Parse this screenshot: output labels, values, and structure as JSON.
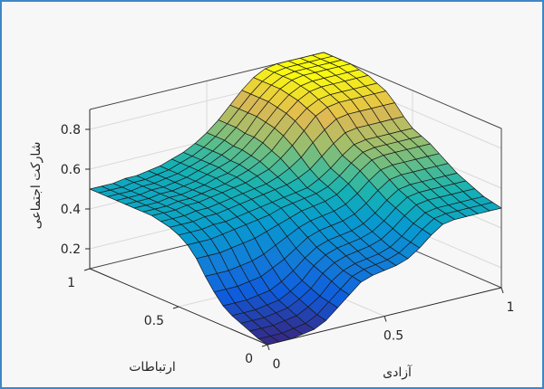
{
  "chart_data": {
    "type": "surface",
    "title": "",
    "xlabel": "آزادی",
    "ylabel": "ارتباطات",
    "zlabel": "شارکت اجتماعی",
    "xlim": [
      0,
      1
    ],
    "ylim": [
      0,
      1
    ],
    "zlim": [
      0.1,
      0.9
    ],
    "xticks": [
      "0",
      "0.5",
      "1"
    ],
    "yticks": [
      "0",
      "0.5",
      "1"
    ],
    "zticks": [
      "0.2",
      "0.4",
      "0.6",
      "0.8"
    ],
    "grid": true,
    "colormap": "parula",
    "x": [
      0,
      0.05,
      0.1,
      0.15,
      0.2,
      0.25,
      0.3,
      0.35,
      0.4,
      0.45,
      0.5,
      0.55,
      0.6,
      0.65,
      0.7,
      0.75,
      0.8,
      0.85,
      0.9,
      0.95,
      1.0
    ],
    "y": [
      0,
      0.05,
      0.1,
      0.15,
      0.2,
      0.25,
      0.3,
      0.35,
      0.4,
      0.45,
      0.5,
      0.55,
      0.6,
      0.65,
      0.7,
      0.75,
      0.8,
      0.85,
      0.9,
      0.95,
      1.0
    ],
    "z": [
      [
        0.1,
        0.1,
        0.1,
        0.11,
        0.12,
        0.15,
        0.2,
        0.25,
        0.3,
        0.32,
        0.33,
        0.34,
        0.36,
        0.4,
        0.45,
        0.49,
        0.5,
        0.5,
        0.5,
        0.5,
        0.5
      ],
      [
        0.11,
        0.11,
        0.11,
        0.12,
        0.13,
        0.16,
        0.21,
        0.26,
        0.31,
        0.33,
        0.34,
        0.35,
        0.37,
        0.41,
        0.46,
        0.5,
        0.51,
        0.51,
        0.51,
        0.51,
        0.51
      ],
      [
        0.13,
        0.13,
        0.13,
        0.14,
        0.15,
        0.18,
        0.22,
        0.28,
        0.32,
        0.34,
        0.35,
        0.36,
        0.38,
        0.42,
        0.47,
        0.51,
        0.52,
        0.52,
        0.52,
        0.52,
        0.52
      ],
      [
        0.15,
        0.15,
        0.15,
        0.16,
        0.17,
        0.2,
        0.24,
        0.3,
        0.34,
        0.36,
        0.37,
        0.38,
        0.4,
        0.44,
        0.49,
        0.53,
        0.54,
        0.54,
        0.54,
        0.54,
        0.54
      ],
      [
        0.17,
        0.17,
        0.17,
        0.18,
        0.19,
        0.22,
        0.26,
        0.32,
        0.36,
        0.38,
        0.39,
        0.4,
        0.42,
        0.46,
        0.51,
        0.55,
        0.56,
        0.56,
        0.56,
        0.56,
        0.56
      ],
      [
        0.2,
        0.2,
        0.2,
        0.21,
        0.22,
        0.25,
        0.29,
        0.34,
        0.38,
        0.4,
        0.41,
        0.42,
        0.44,
        0.48,
        0.53,
        0.57,
        0.58,
        0.58,
        0.58,
        0.58,
        0.58
      ],
      [
        0.25,
        0.25,
        0.25,
        0.26,
        0.27,
        0.3,
        0.33,
        0.37,
        0.41,
        0.43,
        0.44,
        0.45,
        0.47,
        0.51,
        0.56,
        0.6,
        0.61,
        0.61,
        0.61,
        0.61,
        0.61
      ],
      [
        0.31,
        0.31,
        0.31,
        0.32,
        0.33,
        0.35,
        0.38,
        0.41,
        0.44,
        0.46,
        0.47,
        0.48,
        0.5,
        0.54,
        0.59,
        0.63,
        0.64,
        0.64,
        0.64,
        0.64,
        0.64
      ],
      [
        0.38,
        0.38,
        0.38,
        0.39,
        0.4,
        0.41,
        0.43,
        0.45,
        0.47,
        0.49,
        0.5,
        0.51,
        0.53,
        0.57,
        0.62,
        0.66,
        0.67,
        0.67,
        0.67,
        0.67,
        0.67
      ],
      [
        0.43,
        0.43,
        0.43,
        0.44,
        0.45,
        0.46,
        0.47,
        0.48,
        0.5,
        0.51,
        0.52,
        0.53,
        0.55,
        0.59,
        0.64,
        0.68,
        0.69,
        0.69,
        0.69,
        0.69,
        0.69
      ],
      [
        0.46,
        0.46,
        0.46,
        0.47,
        0.47,
        0.48,
        0.49,
        0.5,
        0.51,
        0.52,
        0.53,
        0.54,
        0.57,
        0.61,
        0.66,
        0.7,
        0.71,
        0.71,
        0.71,
        0.71,
        0.71
      ],
      [
        0.48,
        0.48,
        0.48,
        0.49,
        0.49,
        0.5,
        0.51,
        0.52,
        0.53,
        0.54,
        0.55,
        0.57,
        0.6,
        0.65,
        0.7,
        0.74,
        0.75,
        0.75,
        0.75,
        0.75,
        0.75
      ],
      [
        0.49,
        0.49,
        0.49,
        0.5,
        0.5,
        0.51,
        0.52,
        0.53,
        0.54,
        0.55,
        0.57,
        0.6,
        0.64,
        0.7,
        0.75,
        0.79,
        0.8,
        0.8,
        0.8,
        0.8,
        0.8
      ],
      [
        0.5,
        0.5,
        0.5,
        0.51,
        0.51,
        0.52,
        0.53,
        0.54,
        0.55,
        0.57,
        0.59,
        0.63,
        0.68,
        0.74,
        0.8,
        0.83,
        0.84,
        0.84,
        0.84,
        0.84,
        0.84
      ],
      [
        0.5,
        0.5,
        0.5,
        0.51,
        0.51,
        0.52,
        0.53,
        0.54,
        0.56,
        0.58,
        0.61,
        0.65,
        0.71,
        0.77,
        0.82,
        0.85,
        0.86,
        0.86,
        0.86,
        0.86,
        0.86
      ],
      [
        0.5,
        0.5,
        0.5,
        0.51,
        0.51,
        0.52,
        0.53,
        0.55,
        0.56,
        0.59,
        0.62,
        0.67,
        0.73,
        0.79,
        0.84,
        0.87,
        0.88,
        0.88,
        0.88,
        0.88,
        0.88
      ],
      [
        0.5,
        0.5,
        0.5,
        0.51,
        0.51,
        0.52,
        0.53,
        0.55,
        0.57,
        0.59,
        0.63,
        0.68,
        0.74,
        0.8,
        0.85,
        0.88,
        0.89,
        0.89,
        0.89,
        0.89,
        0.89
      ],
      [
        0.5,
        0.5,
        0.5,
        0.51,
        0.51,
        0.52,
        0.53,
        0.55,
        0.57,
        0.6,
        0.63,
        0.68,
        0.75,
        0.81,
        0.86,
        0.89,
        0.9,
        0.9,
        0.9,
        0.9,
        0.9
      ],
      [
        0.5,
        0.5,
        0.5,
        0.51,
        0.51,
        0.52,
        0.53,
        0.55,
        0.57,
        0.6,
        0.64,
        0.69,
        0.75,
        0.81,
        0.86,
        0.89,
        0.9,
        0.9,
        0.9,
        0.9,
        0.9
      ],
      [
        0.5,
        0.5,
        0.5,
        0.51,
        0.51,
        0.52,
        0.53,
        0.55,
        0.57,
        0.6,
        0.64,
        0.69,
        0.75,
        0.81,
        0.86,
        0.89,
        0.9,
        0.9,
        0.9,
        0.9,
        0.9
      ],
      [
        0.5,
        0.5,
        0.5,
        0.51,
        0.51,
        0.52,
        0.53,
        0.55,
        0.57,
        0.6,
        0.64,
        0.69,
        0.75,
        0.81,
        0.86,
        0.89,
        0.9,
        0.9,
        0.9,
        0.9,
        0.9
      ]
    ]
  },
  "style": {
    "frame_border": "#3e86c8",
    "background": "#f7f7f7",
    "axis_color": "#262626",
    "grid_color": "#d9d9d9",
    "mesh_color": "#1a1a1a"
  }
}
